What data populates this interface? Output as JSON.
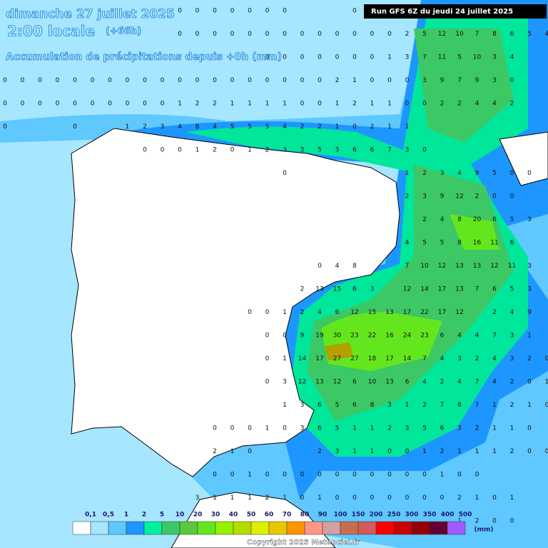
{
  "header": {
    "title": "dimanche 27 juillet 2025",
    "time": "2:00 locale",
    "offset": "(+66h)",
    "subtitle": "Accumulation de précipitations depuis +0h (mm)",
    "run": "Run GFS 6Z du jeudi 24 juillet 2025"
  },
  "grid": {
    "rows": [
      [
        null,
        null,
        null,
        null,
        null,
        null,
        null,
        null,
        null,
        null,
        0,
        0,
        0,
        0,
        0,
        0,
        0,
        null,
        null,
        null,
        0,
        null,
        null,
        null,
        null,
        null,
        null,
        null,
        null,
        null,
        null,
        null
      ],
      [
        null,
        null,
        null,
        null,
        null,
        null,
        null,
        null,
        null,
        null,
        0,
        0,
        0,
        0,
        0,
        0,
        0,
        0,
        0,
        0,
        0,
        0,
        0,
        2,
        5,
        12,
        10,
        7,
        8,
        6,
        5,
        4
      ],
      [
        null,
        null,
        null,
        null,
        null,
        null,
        null,
        null,
        null,
        null,
        null,
        null,
        null,
        null,
        null,
        0,
        0,
        0,
        0,
        0,
        0,
        0,
        1,
        3,
        7,
        11,
        5,
        10,
        3,
        4,
        null,
        null
      ],
      [
        0,
        0,
        0,
        0,
        0,
        0,
        0,
        0,
        0,
        0,
        0,
        0,
        0,
        0,
        0,
        0,
        0,
        0,
        0,
        2,
        1,
        0,
        0,
        0,
        3,
        9,
        7,
        9,
        3,
        0,
        null,
        null
      ],
      [
        0,
        0,
        0,
        0,
        0,
        0,
        0,
        0,
        0,
        0,
        1,
        2,
        2,
        1,
        1,
        1,
        1,
        0,
        0,
        1,
        2,
        1,
        1,
        0,
        0,
        2,
        2,
        4,
        4,
        2,
        null,
        null
      ],
      [
        0,
        null,
        null,
        null,
        0,
        null,
        null,
        1,
        2,
        3,
        4,
        8,
        4,
        5,
        5,
        5,
        4,
        2,
        2,
        1,
        0,
        2,
        1,
        1,
        null,
        null,
        null,
        null,
        null,
        null,
        null,
        null
      ],
      [
        null,
        null,
        null,
        null,
        null,
        null,
        null,
        null,
        0,
        0,
        0,
        1,
        2,
        0,
        1,
        2,
        3,
        3,
        5,
        3,
        6,
        6,
        7,
        3,
        0,
        null,
        null,
        null,
        null,
        null,
        null,
        null
      ],
      [
        null,
        null,
        null,
        null,
        null,
        null,
        null,
        null,
        null,
        null,
        null,
        null,
        null,
        null,
        null,
        null,
        0,
        null,
        null,
        null,
        null,
        null,
        null,
        1,
        2,
        3,
        4,
        9,
        5,
        0,
        0,
        null
      ],
      [
        null,
        null,
        null,
        null,
        null,
        null,
        null,
        null,
        null,
        null,
        null,
        null,
        null,
        null,
        null,
        null,
        null,
        null,
        null,
        null,
        null,
        null,
        null,
        2,
        3,
        9,
        12,
        2,
        0,
        0,
        null,
        null
      ],
      [
        null,
        null,
        null,
        null,
        null,
        null,
        null,
        null,
        null,
        null,
        null,
        null,
        null,
        null,
        null,
        null,
        null,
        null,
        null,
        null,
        null,
        null,
        null,
        null,
        2,
        4,
        8,
        20,
        6,
        5,
        3,
        null
      ],
      [
        null,
        null,
        null,
        null,
        null,
        null,
        null,
        null,
        null,
        null,
        null,
        null,
        null,
        null,
        null,
        null,
        null,
        null,
        null,
        null,
        null,
        null,
        null,
        4,
        5,
        5,
        8,
        16,
        11,
        6,
        null,
        null
      ],
      [
        null,
        null,
        null,
        null,
        null,
        null,
        null,
        null,
        null,
        null,
        null,
        null,
        null,
        null,
        null,
        null,
        null,
        null,
        0,
        4,
        8,
        null,
        null,
        7,
        10,
        12,
        13,
        13,
        12,
        11,
        3,
        null
      ],
      [
        null,
        null,
        null,
        null,
        null,
        null,
        null,
        null,
        null,
        null,
        null,
        null,
        null,
        null,
        null,
        null,
        null,
        2,
        13,
        15,
        6,
        3,
        null,
        12,
        14,
        17,
        13,
        7,
        6,
        5,
        3,
        null
      ],
      [
        null,
        null,
        null,
        null,
        null,
        null,
        null,
        null,
        null,
        null,
        null,
        null,
        null,
        null,
        0,
        0,
        1,
        2,
        4,
        6,
        12,
        15,
        13,
        17,
        22,
        17,
        12,
        null,
        2,
        4,
        9,
        null
      ],
      [
        null,
        null,
        null,
        null,
        null,
        null,
        null,
        null,
        null,
        null,
        null,
        null,
        null,
        null,
        null,
        0,
        0,
        9,
        19,
        30,
        23,
        22,
        16,
        24,
        23,
        6,
        4,
        4,
        7,
        3,
        1,
        null
      ],
      [
        null,
        null,
        null,
        null,
        null,
        null,
        null,
        null,
        null,
        null,
        null,
        null,
        null,
        null,
        null,
        0,
        1,
        14,
        17,
        27,
        27,
        18,
        17,
        14,
        7,
        4,
        3,
        2,
        4,
        3,
        2,
        0
      ],
      [
        null,
        null,
        null,
        null,
        null,
        null,
        null,
        null,
        null,
        null,
        null,
        null,
        null,
        null,
        null,
        0,
        3,
        12,
        13,
        12,
        6,
        10,
        13,
        6,
        4,
        2,
        4,
        7,
        4,
        2,
        0,
        1
      ],
      [
        null,
        null,
        null,
        null,
        null,
        null,
        null,
        null,
        null,
        null,
        null,
        null,
        null,
        null,
        null,
        null,
        1,
        3,
        6,
        5,
        6,
        8,
        3,
        1,
        2,
        7,
        8,
        7,
        1,
        2,
        1,
        0
      ],
      [
        null,
        null,
        null,
        null,
        null,
        null,
        null,
        null,
        null,
        null,
        null,
        null,
        0,
        0,
        0,
        1,
        0,
        3,
        6,
        5,
        1,
        1,
        2,
        3,
        5,
        6,
        3,
        2,
        1,
        1,
        0,
        null
      ],
      [
        null,
        null,
        null,
        null,
        null,
        null,
        null,
        null,
        null,
        null,
        null,
        null,
        2,
        1,
        0,
        null,
        null,
        null,
        2,
        3,
        1,
        1,
        0,
        0,
        1,
        2,
        1,
        1,
        1,
        2,
        0,
        0
      ],
      [
        null,
        null,
        null,
        null,
        null,
        null,
        null,
        null,
        null,
        null,
        null,
        null,
        0,
        0,
        1,
        0,
        0,
        0,
        0,
        0,
        0,
        0,
        0,
        0,
        0,
        1,
        0,
        0,
        null,
        null,
        null,
        null
      ],
      [
        null,
        null,
        null,
        null,
        null,
        null,
        null,
        null,
        null,
        null,
        null,
        3,
        1,
        1,
        1,
        2,
        1,
        0,
        1,
        0,
        0,
        0,
        0,
        0,
        0,
        0,
        2,
        1,
        0,
        1,
        null,
        null
      ],
      [
        null,
        null,
        null,
        null,
        null,
        null,
        null,
        null,
        null,
        null,
        null,
        null,
        null,
        null,
        null,
        null,
        null,
        null,
        null,
        null,
        null,
        null,
        null,
        null,
        null,
        null,
        1,
        2,
        0,
        0,
        null,
        null
      ]
    ]
  },
  "legend": {
    "unit": "(mm)",
    "ticks": [
      {
        "value": 0.1,
        "label": "0,1"
      },
      {
        "value": 0.5,
        "label": "0,5"
      },
      1,
      2,
      5,
      10,
      20,
      30,
      40,
      50,
      60,
      70,
      80,
      90,
      100,
      150,
      200,
      250,
      300,
      350,
      400,
      500
    ],
    "colors": [
      "#ffffff",
      "#a6e6ff",
      "#5fc8ff",
      "#1e96ff",
      "#00f0a0",
      "#3cc864",
      "#5ac83c",
      "#64e61e",
      "#96f000",
      "#b4dc00",
      "#dcf000",
      "#e6c800",
      "#ff9600",
      "#ff9682",
      "#d2a0a0",
      "#c86e50",
      "#d25a5a",
      "#ff0000",
      "#c80000",
      "#960000",
      "#640032",
      "#a05aff"
    ]
  },
  "footer": {
    "copyright": "Copyright 2025 Meteociel.fr"
  }
}
